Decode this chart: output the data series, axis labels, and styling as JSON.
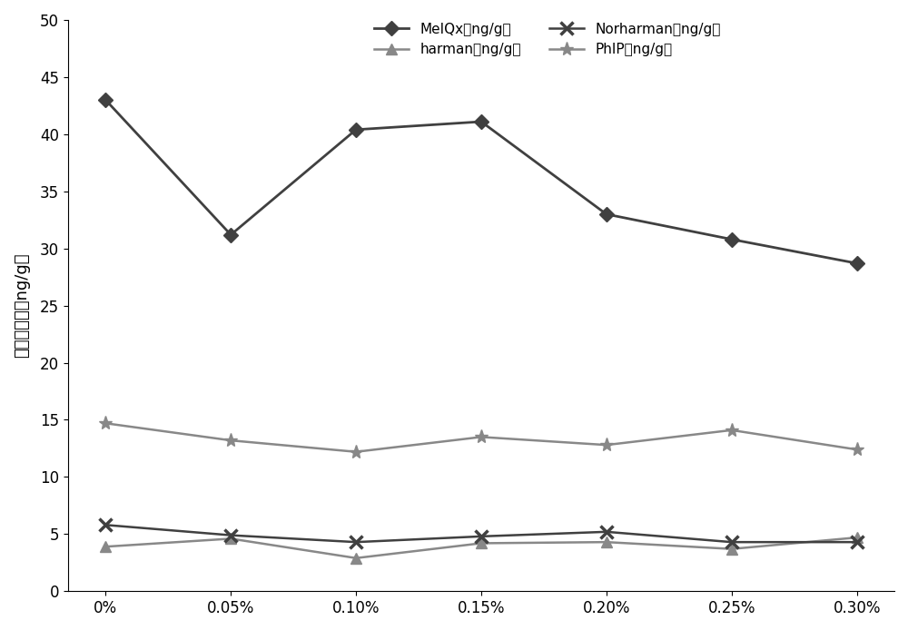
{
  "x_labels": [
    "0%",
    "0.05%",
    "0.10%",
    "0.15%",
    "0.20%",
    "0.25%",
    "0.30%"
  ],
  "MeIQx": [
    43.0,
    31.2,
    40.4,
    41.1,
    33.0,
    30.8,
    28.7
  ],
  "harman": [
    3.9,
    4.6,
    2.9,
    4.2,
    4.3,
    3.7,
    4.7
  ],
  "Norharman": [
    5.8,
    4.9,
    4.3,
    4.8,
    5.2,
    4.3,
    4.3
  ],
  "PhIP": [
    14.7,
    13.2,
    12.2,
    13.5,
    12.8,
    14.1,
    12.4
  ],
  "MeIQx_color": "#404040",
  "harman_color": "#888888",
  "Norharman_color": "#404040",
  "PhIP_color": "#888888",
  "ylabel": "杂环胺含量（ng/g）",
  "ylim": [
    0,
    50
  ],
  "yticks": [
    0,
    5,
    10,
    15,
    20,
    25,
    30,
    35,
    40,
    45,
    50
  ],
  "legend_MeIQx": "MeIQx（ng/g）",
  "legend_harman": "harman（ng/g）",
  "legend_Norharman": "Norharman（ng/g）",
  "legend_PhIP": "PhIP（ng/g）",
  "figwidth": 10.0,
  "figheight": 6.94,
  "dpi": 100
}
